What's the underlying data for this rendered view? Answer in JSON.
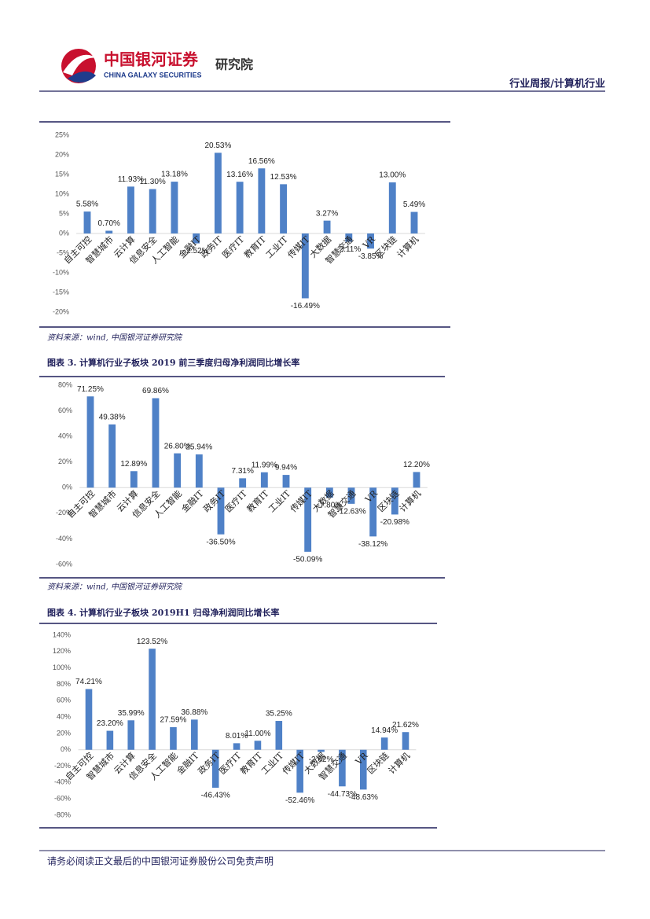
{
  "header": {
    "company": "中国银河证券",
    "company_en": "CHINA GALAXY SECURITIES",
    "institute": "研究院",
    "report_type": "行业周报/计算机行业"
  },
  "chart_data": [
    {
      "type": "bar",
      "categories": [
        "自主可控",
        "智慧城市",
        "云计算",
        "信息安全",
        "人工智能",
        "金融IT",
        "政务IT",
        "医疗IT",
        "教育IT",
        "工业IT",
        "传媒IT",
        "大数据",
        "智慧交通",
        "VR",
        "区块链",
        "计算机"
      ],
      "values": [
        5.58,
        0.7,
        11.93,
        11.3,
        13.18,
        -2.52,
        20.53,
        13.16,
        16.56,
        12.53,
        -16.49,
        3.27,
        -2.11,
        -3.85,
        13.0,
        5.49
      ],
      "value_labels": [
        "5.58%",
        "0.70%",
        "11.93%",
        "11.30%",
        "13.18%",
        "-2.52%",
        "20.53%",
        "13.16%",
        "16.56%",
        "12.53%",
        "-16.49%",
        "3.27%",
        "-2.11%",
        "-3.85%",
        "13.00%",
        "5.49%"
      ],
      "color": "#4f81c7",
      "ylim": [
        -20,
        25
      ],
      "yticks": [
        {
          "value": 25,
          "label": "25%"
        },
        {
          "value": 20,
          "label": "20%"
        },
        {
          "value": 15,
          "label": "15%"
        },
        {
          "value": 10,
          "label": "10%"
        },
        {
          "value": 5,
          "label": "5%"
        },
        {
          "value": 0,
          "label": "0%"
        },
        {
          "value": -5,
          "label": "-5%"
        },
        {
          "value": -10,
          "label": "-10%"
        },
        {
          "value": -15,
          "label": "-15%"
        },
        {
          "value": -20,
          "label": "-20%"
        }
      ],
      "source": "资料来源：wind, 中国银河证券研究院"
    },
    {
      "type": "bar",
      "title": "图表 3. 计算机行业子板块 2019 前三季度归母净利润同比增长率",
      "categories": [
        "自主可控",
        "智慧城市",
        "云计算",
        "信息安全",
        "人工智能",
        "金融IT",
        "政务IT",
        "医疗IT",
        "教育IT",
        "工业IT",
        "传媒IT",
        "大数据",
        "智慧交通",
        "VR",
        "区块链",
        "计算机"
      ],
      "values": [
        71.25,
        49.38,
        12.89,
        69.86,
        26.8,
        25.94,
        -36.5,
        7.31,
        11.99,
        9.94,
        -50.09,
        -7.8,
        -12.63,
        -38.12,
        -20.98,
        12.2
      ],
      "value_labels": [
        "71.25%",
        "49.38%",
        "12.89%",
        "69.86%",
        "26.80%",
        "25.94%",
        "-36.50%",
        "7.31%",
        "11.99%",
        "9.94%",
        "-50.09%",
        "-7.80%",
        "-12.63%",
        "-38.12%",
        "-20.98%",
        "12.20%"
      ],
      "color": "#4f81c7",
      "ylim": [
        -60,
        80
      ],
      "yticks": [
        {
          "value": 80,
          "label": "80%"
        },
        {
          "value": 60,
          "label": "60%"
        },
        {
          "value": 40,
          "label": "40%"
        },
        {
          "value": 20,
          "label": "20%"
        },
        {
          "value": 0,
          "label": "0%"
        },
        {
          "value": -20,
          "label": "-20%"
        },
        {
          "value": -40,
          "label": "-40%"
        },
        {
          "value": -60,
          "label": "-60%"
        }
      ],
      "source": "资料来源：wind, 中国银河证券研究院"
    },
    {
      "type": "bar",
      "title": "图表 4. 计算机行业子板块 2019H1 归母净利润同比增长率",
      "categories": [
        "自主可控",
        "智慧城市",
        "云计算",
        "信息安全",
        "人工智能",
        "金融IT",
        "政务IT",
        "医疗IT",
        "教育IT",
        "工业IT",
        "传媒IT",
        "大数据",
        "智慧交通",
        "VR",
        "区块链",
        "计算机"
      ],
      "values": [
        74.21,
        23.2,
        35.99,
        123.52,
        27.59,
        36.88,
        -46.43,
        8.01,
        11.0,
        35.25,
        -52.46,
        -2.62,
        -44.73,
        -48.63,
        14.94,
        21.62
      ],
      "value_labels": [
        "74.21%",
        "23.20%",
        "35.99%",
        "123.52%",
        "27.59%",
        "36.88%",
        "-46.43%",
        "8.01%",
        "11.00%",
        "35.25%",
        "-52.46%",
        "-2.62%",
        "-44.73%",
        "-48.63%",
        "14.94%",
        "21.62%"
      ],
      "color": "#4f81c7",
      "ylim": [
        -80,
        140
      ],
      "yticks": [
        {
          "value": 140,
          "label": "140%"
        },
        {
          "value": 120,
          "label": "120%"
        },
        {
          "value": 100,
          "label": "100%"
        },
        {
          "value": 80,
          "label": "80%"
        },
        {
          "value": 60,
          "label": "60%"
        },
        {
          "value": 40,
          "label": "40%"
        },
        {
          "value": 20,
          "label": "20%"
        },
        {
          "value": 0,
          "label": "0%"
        },
        {
          "value": -20,
          "label": "-20%"
        },
        {
          "value": -40,
          "label": "-40%"
        },
        {
          "value": -60,
          "label": "-60%"
        },
        {
          "value": -80,
          "label": "-80%"
        }
      ]
    }
  ],
  "footer": "请务必阅读正文最后的中国银河证券股份公司免责声明"
}
